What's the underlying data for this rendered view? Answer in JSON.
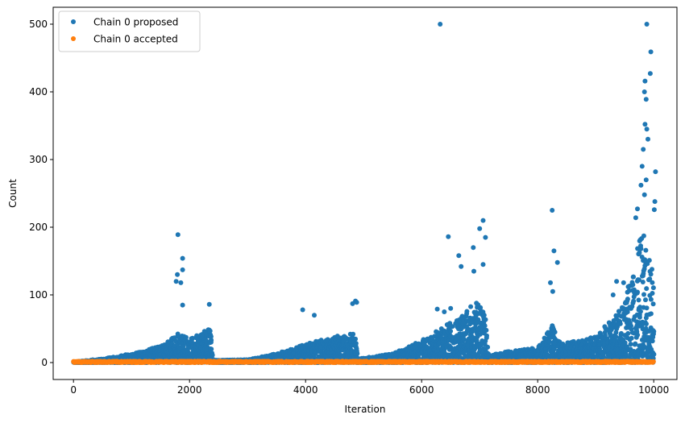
{
  "chart_data": {
    "type": "scatter",
    "title": "",
    "xlabel": "Iteration",
    "ylabel": "Count",
    "xlim": [
      -350,
      10400
    ],
    "ylim": [
      -25,
      525
    ],
    "x_ticks": [
      0,
      2000,
      4000,
      6000,
      8000,
      10000
    ],
    "y_ticks": [
      0,
      100,
      200,
      300,
      400,
      500
    ],
    "grid": false,
    "legend_position": "top-left",
    "iterations": 10000,
    "series": [
      {
        "name": "Chain 0 proposed",
        "color": "#1f77b4",
        "envelope_note": "dense cloud of points; typical upper envelope by iteration",
        "envelope": [
          [
            0,
            1
          ],
          [
            500,
            5
          ],
          [
            1000,
            12
          ],
          [
            1500,
            22
          ],
          [
            1800,
            40
          ],
          [
            2000,
            32
          ],
          [
            2380,
            48
          ],
          [
            2400,
            3
          ],
          [
            3000,
            4
          ],
          [
            3500,
            12
          ],
          [
            4000,
            25
          ],
          [
            4500,
            35
          ],
          [
            4850,
            40
          ],
          [
            4900,
            5
          ],
          [
            5500,
            12
          ],
          [
            6000,
            30
          ],
          [
            6500,
            55
          ],
          [
            7000,
            85
          ],
          [
            7100,
            60
          ],
          [
            7150,
            10
          ],
          [
            7500,
            15
          ],
          [
            8000,
            20
          ],
          [
            8250,
            50
          ],
          [
            8400,
            25
          ],
          [
            9000,
            35
          ],
          [
            9500,
            80
          ],
          [
            9800,
            180
          ],
          [
            10000,
            120
          ]
        ],
        "notable_points": [
          [
            6320,
            500
          ],
          [
            9880,
            500
          ],
          [
            9950,
            459
          ],
          [
            9940,
            427
          ],
          [
            9850,
            416
          ],
          [
            9840,
            400
          ],
          [
            9870,
            389
          ],
          [
            9850,
            352
          ],
          [
            9880,
            345
          ],
          [
            9900,
            330
          ],
          [
            9820,
            315
          ],
          [
            9800,
            290
          ],
          [
            9870,
            270
          ],
          [
            10030,
            282
          ],
          [
            9780,
            262
          ],
          [
            9840,
            248
          ],
          [
            10020,
            238
          ],
          [
            9720,
            227
          ],
          [
            9690,
            214
          ],
          [
            10010,
            226
          ],
          [
            8250,
            225
          ],
          [
            7060,
            210
          ],
          [
            7000,
            198
          ],
          [
            7100,
            185
          ],
          [
            6890,
            170
          ],
          [
            6460,
            186
          ],
          [
            1800,
            189
          ],
          [
            1880,
            154
          ],
          [
            1880,
            137
          ],
          [
            1790,
            130
          ],
          [
            1770,
            120
          ],
          [
            1850,
            118
          ],
          [
            8280,
            165
          ],
          [
            8340,
            148
          ],
          [
            6640,
            158
          ],
          [
            6680,
            142
          ],
          [
            6900,
            135
          ],
          [
            7060,
            145
          ],
          [
            8220,
            118
          ],
          [
            8260,
            105
          ],
          [
            4860,
            91
          ],
          [
            4880,
            89
          ],
          [
            4810,
            87
          ],
          [
            2340,
            86
          ],
          [
            1880,
            85
          ],
          [
            3950,
            78
          ],
          [
            4150,
            70
          ],
          [
            6270,
            79
          ],
          [
            6390,
            75
          ],
          [
            6500,
            80
          ],
          [
            9360,
            120
          ],
          [
            9480,
            118
          ],
          [
            9560,
            112
          ],
          [
            9300,
            100
          ],
          [
            9640,
            115
          ]
        ]
      },
      {
        "name": "Chain 0 accepted",
        "color": "#ff7f0e",
        "y_range": [
          0,
          2
        ]
      }
    ]
  }
}
